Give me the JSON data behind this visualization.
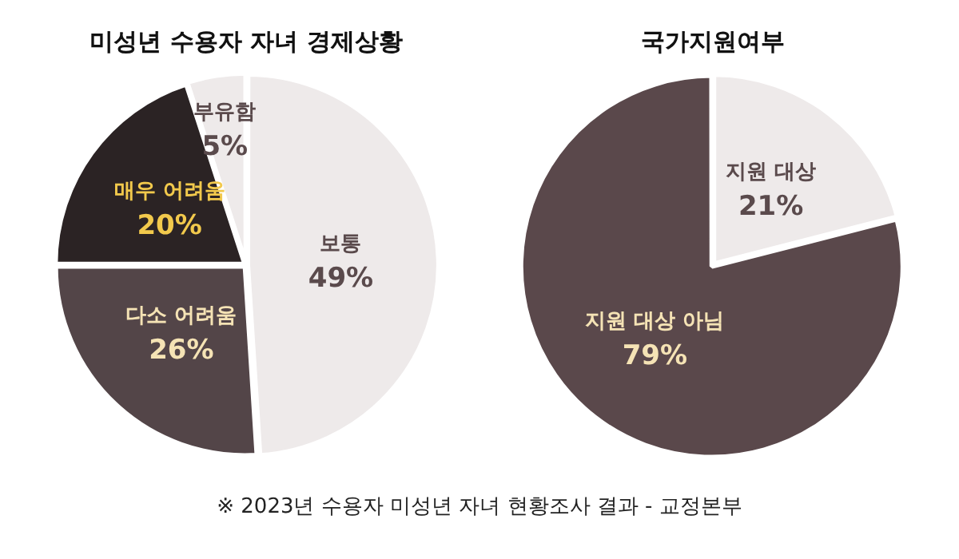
{
  "chart_data": [
    {
      "type": "pie",
      "title": "미성년 수용자 자녀 경제상황",
      "categories": [
        "보통",
        "다소 어려움",
        "매우 어려움",
        "부유함"
      ],
      "values": [
        49,
        26,
        20,
        5
      ],
      "colors": [
        "#eeeaea",
        "#534548",
        "#2b2324",
        "#eeeaea"
      ],
      "value_labels": [
        "49%",
        "26%",
        "20%",
        "5%"
      ],
      "legend": false
    },
    {
      "type": "pie",
      "title": "국가지원여부",
      "categories": [
        "지원 대상",
        "지원 대상 아님"
      ],
      "values": [
        21,
        79
      ],
      "colors": [
        "#eeeaea",
        "#5a484b"
      ],
      "value_labels": [
        "21%",
        "79%"
      ],
      "legend": false,
      "annotations": [
        "※ 2023년 수용자 미성년 자녀 현황조사 결과 - 교정본부"
      ]
    }
  ]
}
